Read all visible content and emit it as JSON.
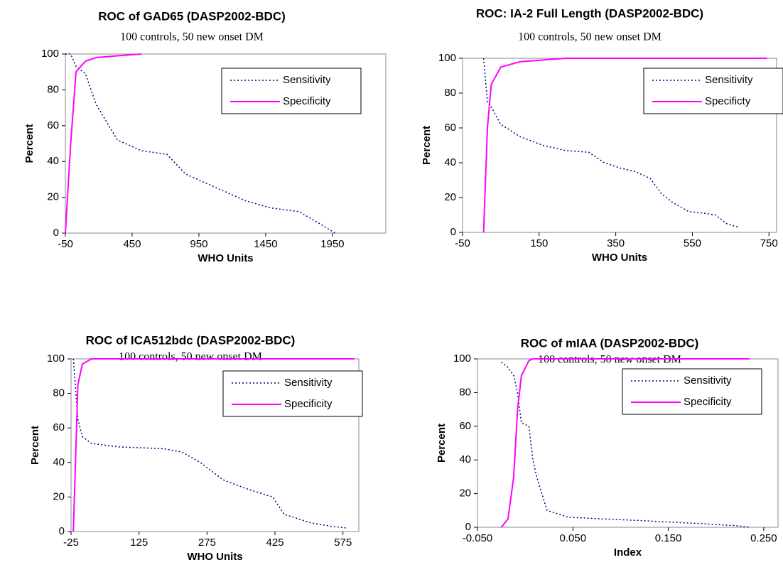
{
  "chart_data": [
    {
      "type": "line",
      "title": "ROC of GAD65 (DASP2002-BDC)",
      "subtitle": "100 controls, 50 new onset DM",
      "x_label": "WHO Units",
      "y_label": "Percent",
      "legend": "upper right",
      "x": [
        -50,
        -10,
        30,
        100,
        180,
        340,
        520,
        710,
        850,
        1060,
        1300,
        1490,
        1700,
        1860,
        1970
      ],
      "series": [
        {
          "name": "Sensitivity",
          "color": "#000080",
          "dash": "dotted",
          "values": [
            100,
            100,
            93,
            89,
            72,
            52,
            46,
            44,
            33,
            26,
            18,
            14,
            12,
            5,
            0
          ]
        },
        {
          "name": "Specificity",
          "color": "#ff00ff",
          "dash": "solid",
          "values": [
            0,
            50,
            90,
            96,
            98,
            99,
            100,
            null,
            null,
            null,
            null,
            null,
            null,
            null,
            null
          ]
        }
      ],
      "xlim": [
        -50,
        2350
      ],
      "ylim": [
        0,
        100
      ],
      "xticks": [
        -50,
        450,
        950,
        1450,
        1950
      ],
      "yticks": [
        0,
        20,
        40,
        60,
        80,
        100
      ]
    },
    {
      "type": "line",
      "title": "ROC: IA-2 Full Length (DASP2002-BDC)",
      "subtitle": "100 controls, 50 new onset DM",
      "x_label": "WHO Units",
      "y_label": "Percent",
      "legend": "upper right",
      "x": [
        5,
        15,
        25,
        50,
        100,
        160,
        220,
        280,
        320,
        360,
        400,
        440,
        470,
        500,
        540,
        580,
        610,
        640,
        670,
        745
      ],
      "series": [
        {
          "name": "Sensitivity",
          "color": "#000080",
          "dash": "dotted",
          "values": [
            100,
            75,
            72,
            62,
            55,
            50,
            47,
            46,
            40,
            37,
            35,
            31,
            22,
            17,
            12,
            11,
            10,
            5,
            3,
            null
          ]
        },
        {
          "name": "Specificty",
          "color": "#ff00ff",
          "dash": "solid",
          "values": [
            0,
            60,
            85,
            95,
            98,
            99,
            100,
            100,
            100,
            100,
            100,
            100,
            100,
            100,
            100,
            100,
            100,
            100,
            100,
            100
          ]
        }
      ],
      "xlim": [
        -50,
        770
      ],
      "ylim": [
        0,
        100
      ],
      "xticks": [
        -50,
        150,
        350,
        550,
        750
      ],
      "yticks": [
        0,
        20,
        40,
        60,
        80,
        100
      ]
    },
    {
      "type": "line",
      "title": "ROC of ICA512bdc (DASP2002-BDC)",
      "subtitle": "100 controls, 50 new onset DM",
      "x_label": "WHO Units",
      "y_label": "Percent",
      "legend": "upper right",
      "x": [
        -20,
        -10,
        0,
        20,
        80,
        180,
        220,
        260,
        310,
        360,
        420,
        445,
        505,
        550,
        585,
        600
      ],
      "series": [
        {
          "name": "Sensitivity",
          "color": "#000080",
          "dash": "dotted",
          "values": [
            100,
            65,
            55,
            51,
            49,
            48,
            46,
            40,
            30,
            25,
            20,
            10,
            5,
            3,
            2,
            null
          ]
        },
        {
          "name": "Specificity",
          "color": "#ff00ff",
          "dash": "solid",
          "values": [
            0,
            85,
            97,
            100,
            100,
            100,
            100,
            100,
            100,
            100,
            100,
            100,
            100,
            100,
            100,
            100
          ]
        }
      ],
      "xlim": [
        -25,
        610
      ],
      "ylim": [
        0,
        100
      ],
      "xticks": [
        -25,
        125,
        275,
        425,
        575
      ],
      "yticks": [
        0,
        20,
        40,
        60,
        80,
        100
      ]
    },
    {
      "type": "line",
      "title": "ROC of mIAA (DASP2002-BDC)",
      "subtitle": "100 controls, 50 new onset DM",
      "x_label": "Index",
      "y_label": "Percent",
      "legend": "upper right",
      "x": [
        -0.025,
        -0.018,
        -0.012,
        -0.008,
        -0.004,
        0.004,
        0.008,
        0.012,
        0.023,
        0.045,
        0.08,
        0.12,
        0.155,
        0.19,
        0.22,
        0.235
      ],
      "series": [
        {
          "name": "Sensitivity",
          "color": "#000080",
          "dash": "dotted",
          "values": [
            98,
            95,
            90,
            80,
            62,
            60,
            40,
            30,
            10,
            6,
            5,
            4,
            3,
            2,
            1,
            0
          ]
        },
        {
          "name": "Specificity",
          "color": "#ff00ff",
          "dash": "solid",
          "values": [
            0,
            5,
            30,
            70,
            90,
            99,
            100,
            100,
            100,
            100,
            100,
            100,
            100,
            100,
            100,
            100
          ]
        }
      ],
      "xlim": [
        -0.05,
        0.265
      ],
      "ylim": [
        0,
        100
      ],
      "xticks": [
        {
          "value": -0.05,
          "label": "-0.050"
        },
        {
          "value": 0.05,
          "label": "0.050"
        },
        {
          "value": 0.15,
          "label": "0.150"
        },
        {
          "value": 0.25,
          "label": "0.250"
        }
      ],
      "yticks": [
        0,
        20,
        40,
        60,
        80,
        100
      ]
    }
  ]
}
